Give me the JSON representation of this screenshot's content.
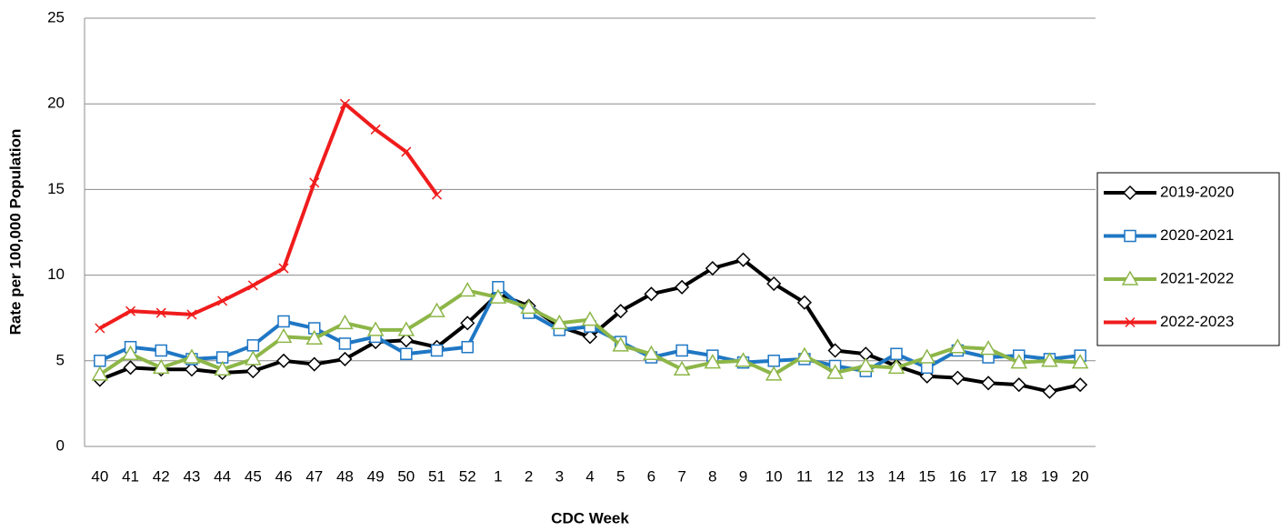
{
  "chart_data": {
    "type": "line",
    "x_label": "CDC Week",
    "y_label": "Rate per 100,000 Population",
    "categories": [
      "40",
      "41",
      "42",
      "43",
      "44",
      "45",
      "46",
      "47",
      "48",
      "49",
      "50",
      "51",
      "52",
      "1",
      "2",
      "3",
      "4",
      "5",
      "6",
      "7",
      "8",
      "9",
      "10",
      "11",
      "12",
      "13",
      "14",
      "15",
      "16",
      "17",
      "18",
      "19",
      "20"
    ],
    "ylim": [
      0,
      25
    ],
    "yticks": [
      0,
      5,
      10,
      15,
      20,
      25
    ],
    "grid": true,
    "legend": "right",
    "series": [
      {
        "name": "2019-2020",
        "color": "#000000",
        "marker": "diamond",
        "values": [
          3.9,
          4.6,
          4.5,
          4.5,
          4.3,
          4.4,
          5.0,
          4.8,
          5.1,
          6.1,
          6.2,
          5.8,
          7.2,
          8.9,
          8.2,
          7.0,
          6.4,
          7.9,
          8.9,
          9.3,
          10.4,
          10.9,
          9.5,
          8.4,
          5.6,
          5.4,
          4.7,
          4.1,
          4.0,
          3.7,
          3.6,
          3.2,
          3.6
        ]
      },
      {
        "name": "2020-2021",
        "color": "#1f77c4",
        "marker": "square",
        "values": [
          5.0,
          5.8,
          5.6,
          5.1,
          5.2,
          5.9,
          7.3,
          6.9,
          6.0,
          6.4,
          5.4,
          5.6,
          5.8,
          9.3,
          7.8,
          6.8,
          7.0,
          6.1,
          5.2,
          5.6,
          5.3,
          4.9,
          5.0,
          5.1,
          4.7,
          4.4,
          5.4,
          4.6,
          5.6,
          5.2,
          5.3,
          5.1,
          5.3
        ]
      },
      {
        "name": "2021-2022",
        "color": "#8db648",
        "marker": "triangle",
        "values": [
          4.2,
          5.4,
          4.6,
          5.2,
          4.5,
          5.1,
          6.4,
          6.3,
          7.2,
          6.8,
          6.8,
          7.9,
          9.1,
          8.7,
          8.1,
          7.2,
          7.4,
          5.9,
          5.4,
          4.5,
          4.9,
          5.0,
          4.2,
          5.3,
          4.3,
          4.7,
          4.6,
          5.2,
          5.8,
          5.7,
          4.9,
          5.0,
          4.9
        ]
      },
      {
        "name": "2022-2023",
        "color": "#f01c1c",
        "marker": "x",
        "values": [
          6.9,
          7.9,
          7.8,
          7.7,
          8.5,
          9.4,
          10.4,
          15.4,
          20.0,
          18.5,
          17.2,
          14.7,
          null,
          null,
          null,
          null,
          null,
          null,
          null,
          null,
          null,
          null,
          null,
          null,
          null,
          null,
          null,
          null,
          null,
          null,
          null,
          null,
          null
        ]
      }
    ]
  }
}
